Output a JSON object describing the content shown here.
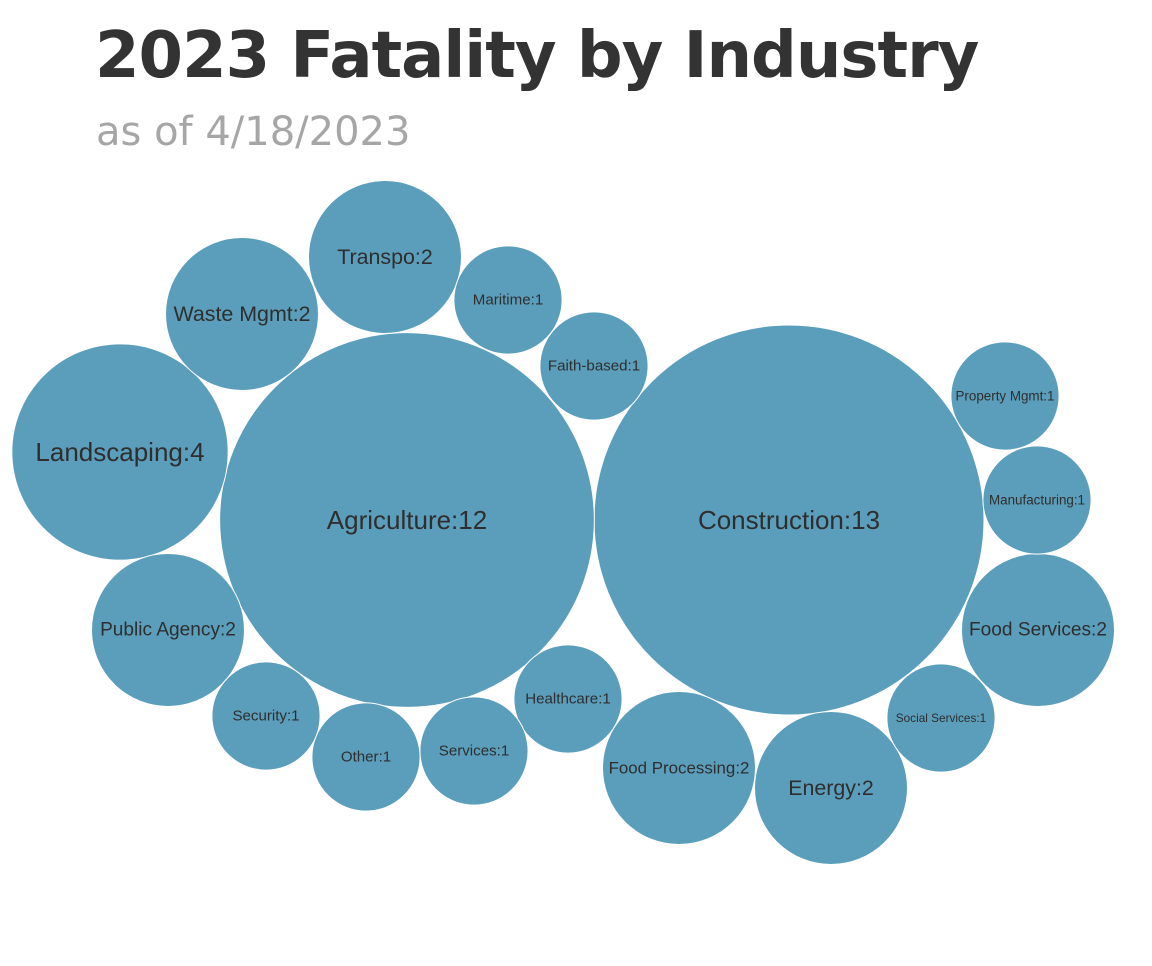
{
  "title": "2023 Fatality by Industry",
  "subtitle": "as of 4/18/2023",
  "bubble_color": "#5b9ebb",
  "label_color": "#2e2e2e",
  "chart_data": {
    "type": "bubble",
    "title": "2023 Fatality by Industry",
    "subtitle": "as of 4/18/2023",
    "label_format": "{category}:{value}",
    "categories": [
      "Construction",
      "Agriculture",
      "Landscaping",
      "Transpo",
      "Waste Mgmt",
      "Public Agency",
      "Food Services",
      "Food Processing",
      "Energy",
      "Maritime",
      "Faith-based",
      "Property Mgmt",
      "Manufacturing",
      "Social Services",
      "Healthcare",
      "Services",
      "Other",
      "Security"
    ],
    "values": [
      13,
      12,
      4,
      2,
      2,
      2,
      2,
      2,
      2,
      1,
      1,
      1,
      1,
      1,
      1,
      1,
      1,
      1
    ],
    "labels": [
      "Construction:13",
      "Agriculture:12",
      "Landscaping:4",
      "Transpo:2",
      "Waste Mgmt:2",
      "Public Agency:2",
      "Food Services:2",
      "Food Processing:2",
      "Energy:2",
      "Maritime:1",
      "Faith-based:1",
      "Property Mgmt:1",
      "Manufacturing:1",
      "Social Services:1",
      "Healthcare:1",
      "Services:1",
      "Other:1",
      "Security:1"
    ]
  }
}
